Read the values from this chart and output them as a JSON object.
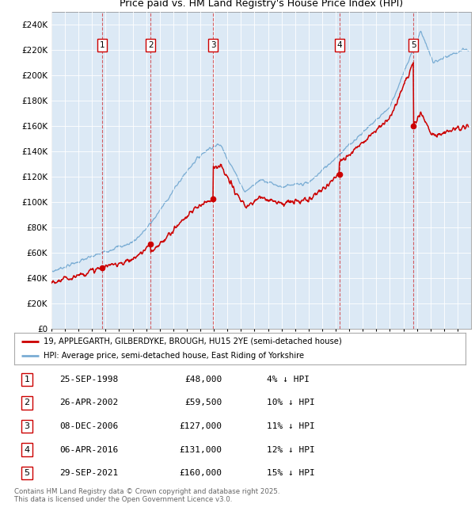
{
  "title": "19, APPLEGARTH, GILBERDYKE, BROUGH, HU15 2YE",
  "subtitle": "Price paid vs. HM Land Registry's House Price Index (HPI)",
  "legend_property": "19, APPLEGARTH, GILBERDYKE, BROUGH, HU15 2YE (semi-detached house)",
  "legend_hpi": "HPI: Average price, semi-detached house, East Riding of Yorkshire",
  "transactions": [
    {
      "num": 1,
      "date": "25-SEP-1998",
      "price": 48000,
      "pct": "4%",
      "dir": "↓",
      "date_x": 1998.73
    },
    {
      "num": 2,
      "date": "26-APR-2002",
      "price": 59500,
      "pct": "10%",
      "dir": "↓",
      "date_x": 2002.32
    },
    {
      "num": 3,
      "date": "08-DEC-2006",
      "price": 127000,
      "pct": "11%",
      "dir": "↓",
      "date_x": 2006.94
    },
    {
      "num": 4,
      "date": "06-APR-2016",
      "price": 131000,
      "pct": "12%",
      "dir": "↓",
      "date_x": 2016.27
    },
    {
      "num": 5,
      "date": "29-SEP-2021",
      "price": 160000,
      "pct": "15%",
      "dir": "↓",
      "date_x": 2021.75
    }
  ],
  "footnote": "Contains HM Land Registry data © Crown copyright and database right 2025.\nThis data is licensed under the Open Government Licence v3.0.",
  "property_color": "#cc0000",
  "hpi_color": "#7aadd4",
  "background_color": "#dce9f5",
  "ylim": [
    0,
    250000
  ],
  "yticks": [
    0,
    20000,
    40000,
    60000,
    80000,
    100000,
    120000,
    140000,
    160000,
    180000,
    200000,
    220000,
    240000
  ],
  "xmin": 1995,
  "xmax": 2026
}
